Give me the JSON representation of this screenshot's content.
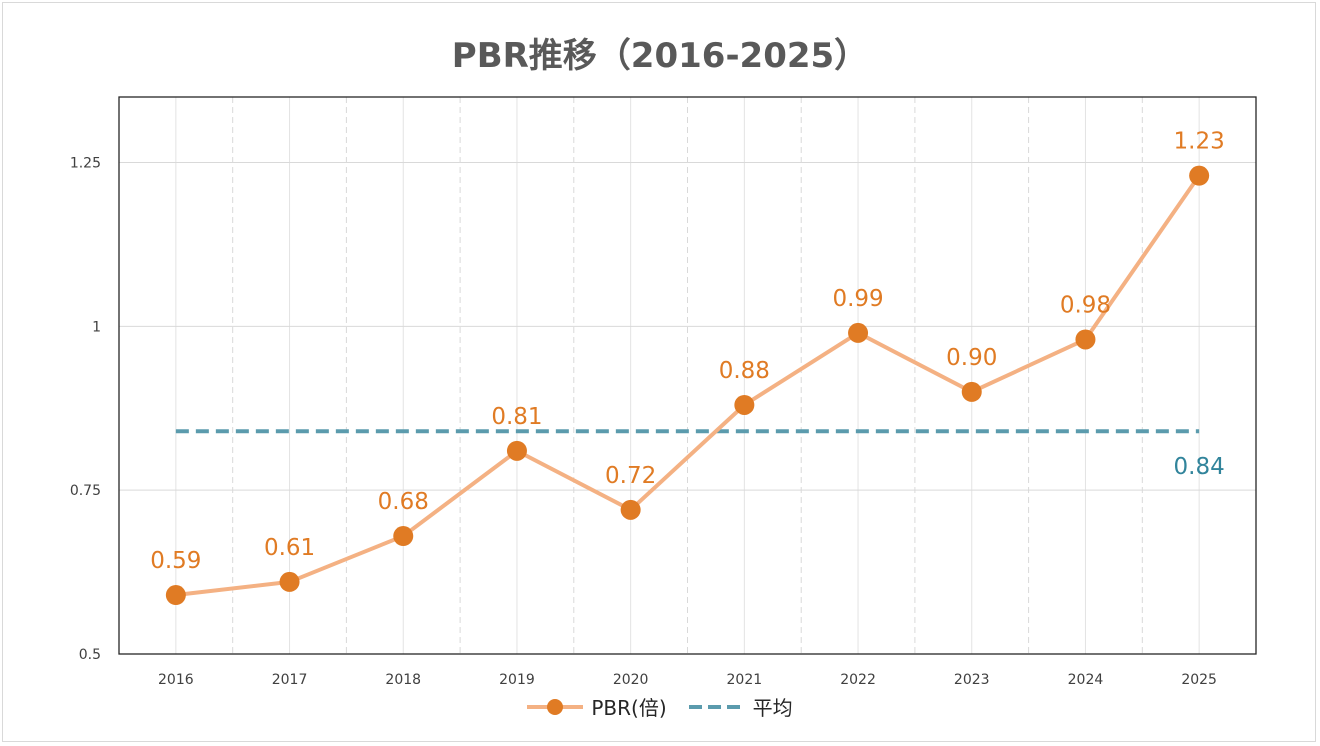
{
  "chart_data": {
    "type": "line",
    "title": "PBR推移（2016-2025）",
    "xlabel": "",
    "ylabel": "",
    "ylim": [
      0.5,
      1.35
    ],
    "yticks": [
      {
        "value": 0.5,
        "label": "0.5"
      },
      {
        "value": 0.75,
        "label": "0.75"
      },
      {
        "value": 1,
        "label": "1"
      },
      {
        "value": 1.25,
        "label": "1.25"
      }
    ],
    "categories": [
      "2016",
      "2017",
      "2018",
      "2019",
      "2020",
      "2021",
      "2022",
      "2023",
      "2024",
      "2025"
    ],
    "series": [
      {
        "name": "PBR(倍)",
        "values": [
          0.59,
          0.61,
          0.68,
          0.81,
          0.72,
          0.88,
          0.99,
          0.9,
          0.98,
          1.23
        ],
        "data_labels": [
          "0.59",
          "0.61",
          "0.68",
          "0.81",
          "0.72",
          "0.88",
          "0.99",
          "0.90",
          "0.98",
          "1.23"
        ],
        "line_color": "#f4b183",
        "marker_color": "#e07b24",
        "label_color": "#e07b24"
      },
      {
        "name": "平均",
        "value": 0.84,
        "data_label": "0.84",
        "line_style": "dashed",
        "line_color": "#5b9bad",
        "label_color": "#31849b"
      }
    ],
    "legend": "bottom-center",
    "grid": true
  }
}
